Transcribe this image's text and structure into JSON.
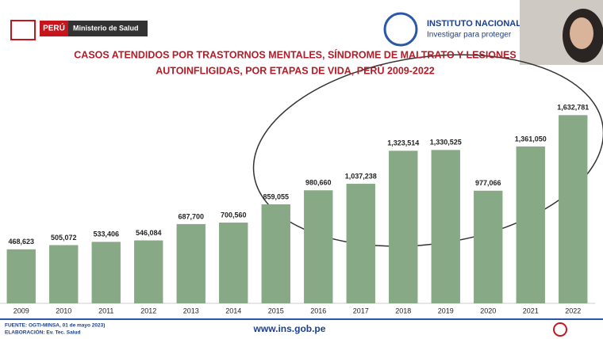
{
  "header": {
    "country": "PERÚ",
    "ministry": "Ministerio de Salud",
    "institute": "INSTITUTO NACIONAL",
    "motto": "Investigar para proteger"
  },
  "footer": {
    "source": "FUENTE: OGTI-MINSA, 01 de mayo 2023)",
    "made_by": "ELABORACIÓN: Ev. Tec. Salud",
    "url": "www.ins.gob.pe"
  },
  "chart_data": {
    "type": "bar",
    "title": [
      "CASOS ATENDIDOS POR TRASTORNOS MENTALES, SÍNDROME DE MALTRATO Y LESIONES",
      "AUTOINFLIGIDAS, POR ETAPAS DE VIDA, PERÚ 2009-2022"
    ],
    "categories": [
      "2009",
      "2010",
      "2011",
      "2012",
      "2013",
      "2014",
      "2015",
      "2016",
      "2017",
      "2018",
      "2019",
      "2020",
      "2021",
      "2022"
    ],
    "values": [
      468623,
      505072,
      533406,
      546084,
      687700,
      700560,
      859055,
      980660,
      1037238,
      1323514,
      1330525,
      977066,
      1361050,
      1632781
    ],
    "value_labels": [
      "468,623",
      "505,072",
      "533,406",
      "546,084",
      "687,700",
      "700,560",
      "859,055",
      "980,660",
      "1,037,238",
      "1,323,514",
      "1,330,525",
      "977,066",
      "1,361,050",
      "1,632,781"
    ],
    "color": "#88a985",
    "ylim": [
      0,
      1800000
    ]
  }
}
